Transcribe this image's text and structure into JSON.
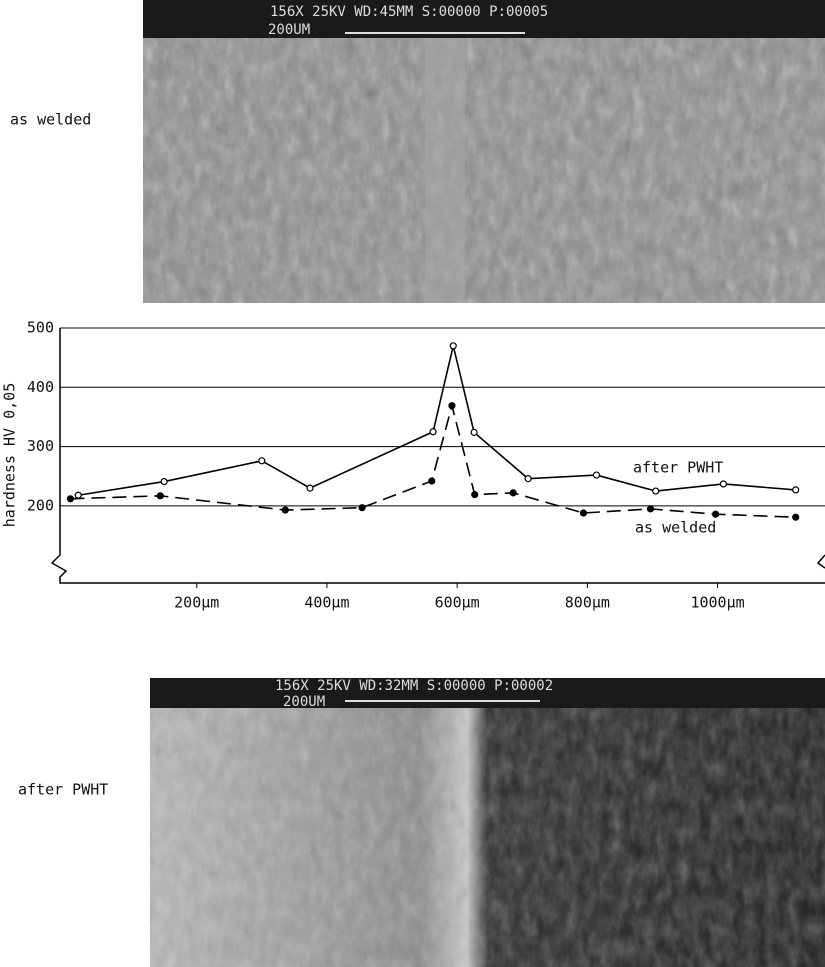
{
  "images": [
    {
      "label": "as welded",
      "header": "156X   25KV WD:45MM   S:00000 P:00005",
      "scale": "200UM"
    },
    {
      "label": "after PWHT",
      "header": "156X   25KV WD:32MM   S:00000 P:00002",
      "scale": "200UM"
    }
  ],
  "chart_data": {
    "type": "line",
    "y_label": "hardness  HV 0,05",
    "xlim": [
      -10,
      1165
    ],
    "ylim": [
      70,
      500
    ],
    "xticks": [
      {
        "value": 200,
        "label": "200µm"
      },
      {
        "value": 400,
        "label": "400µm"
      },
      {
        "value": 600,
        "label": "600µm"
      },
      {
        "value": 800,
        "label": "800µm"
      },
      {
        "value": 1000,
        "label": "1000µm"
      }
    ],
    "yticks": [
      200,
      300,
      400,
      500
    ],
    "grid": true,
    "series": [
      {
        "name": "after PWHT",
        "color": "#000000",
        "dashed": false,
        "marker": "open",
        "x": [
          18,
          150,
          300,
          374,
          563,
          594,
          626,
          709,
          814,
          905,
          1009,
          1120
        ],
        "values": [
          218,
          241,
          276,
          230,
          325,
          470,
          324,
          246,
          252,
          225,
          237,
          227
        ]
      },
      {
        "name": "as welded",
        "color": "#000000",
        "dashed": true,
        "marker": "filled",
        "x": [
          6,
          144,
          336,
          454,
          561,
          592,
          627,
          686,
          794,
          897,
          997,
          1120
        ],
        "values": [
          212,
          217,
          193,
          197,
          242,
          369,
          219,
          222,
          188,
          195,
          186,
          181
        ]
      }
    ]
  }
}
